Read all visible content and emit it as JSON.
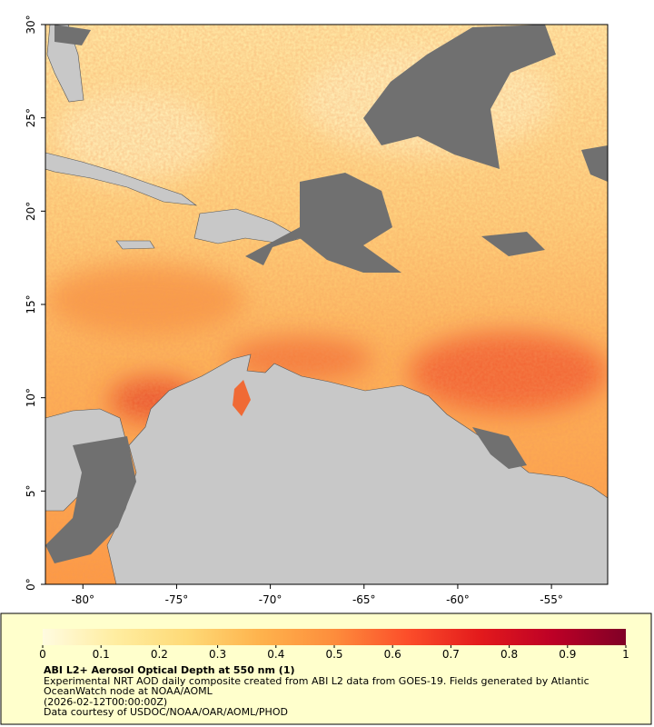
{
  "map": {
    "xlim": [
      -82,
      -52
    ],
    "ylim": [
      0,
      30
    ],
    "xticks": [
      {
        "value": -80,
        "label": "-80°"
      },
      {
        "value": -75,
        "label": "-75°"
      },
      {
        "value": -70,
        "label": "-70°"
      },
      {
        "value": -65,
        "label": "-65°"
      },
      {
        "value": -60,
        "label": "-60°"
      },
      {
        "value": -55,
        "label": "-55°"
      }
    ],
    "yticks": [
      {
        "value": 0,
        "label": "0°"
      },
      {
        "value": 5,
        "label": "5°"
      },
      {
        "value": 10,
        "label": "10°"
      },
      {
        "value": 15,
        "label": "15°"
      },
      {
        "value": 20,
        "label": "20°"
      },
      {
        "value": 25,
        "label": "25°"
      },
      {
        "value": 30,
        "label": "30°"
      }
    ]
  },
  "colorbar": {
    "range": [
      0,
      1
    ],
    "ticks": [
      0,
      0.1,
      0.2,
      0.3,
      0.4,
      0.5,
      0.6,
      0.7,
      0.8,
      0.9,
      1
    ],
    "colors": [
      "#fffbe0",
      "#ffeda0",
      "#fed976",
      "#feb24c",
      "#fd8d3c",
      "#fc4e2a",
      "#e31a1c",
      "#bd0026",
      "#800026"
    ]
  },
  "caption": {
    "title": "ABI L2+ Aerosol Optical Depth at 550 nm (1)",
    "lines": [
      "Experimental NRT AOD daily composite created from ABI L2 data from GOES-19. Fields generated by Atlantic OceanWatch node at NOAA/AOML",
      "(2026-02-12T00:00:00Z)",
      "Data courtesy of USDOC/NOAA/OAR/AOML/PHOD"
    ]
  }
}
